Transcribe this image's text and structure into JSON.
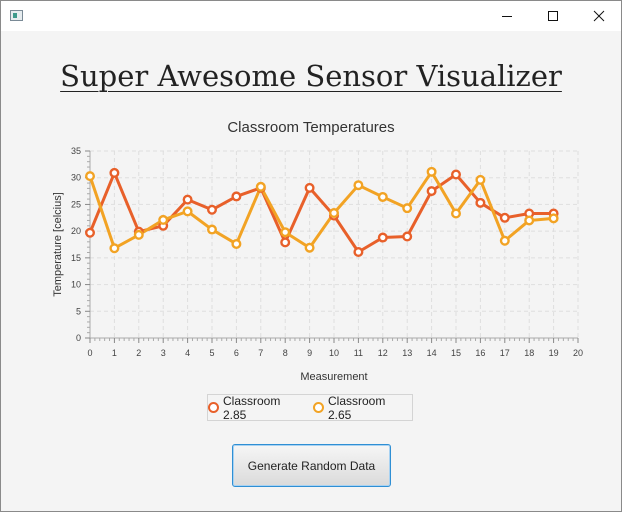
{
  "window": {
    "controls": {
      "minimize_icon": "minimize-icon",
      "maximize_icon": "maximize-icon",
      "close_icon": "close-icon"
    }
  },
  "header": {
    "title": "Super Awesome Sensor Visualizer"
  },
  "chart_data": {
    "type": "line",
    "title": "Classroom Temperatures",
    "xlabel": "Measurement",
    "ylabel": "Temperature [celcius]",
    "xlim": [
      0,
      20
    ],
    "ylim": [
      0,
      35
    ],
    "x_ticks": [
      0,
      1,
      2,
      3,
      4,
      5,
      6,
      7,
      8,
      9,
      10,
      11,
      12,
      13,
      14,
      15,
      16,
      17,
      18,
      19,
      20
    ],
    "y_ticks": [
      0,
      5,
      10,
      15,
      20,
      25,
      30,
      35
    ],
    "grid": true,
    "legend_position": "bottom",
    "x": [
      0,
      1,
      2,
      3,
      4,
      5,
      6,
      7,
      8,
      9,
      10,
      11,
      12,
      13,
      14,
      15,
      16,
      17,
      18,
      19
    ],
    "series": [
      {
        "name": "Classroom 2.85",
        "color": "#e8602a",
        "values": [
          19.7,
          30.9,
          19.9,
          21.0,
          25.9,
          24.0,
          26.5,
          28.1,
          17.9,
          28.1,
          22.9,
          16.1,
          18.8,
          19.0,
          27.5,
          30.6,
          25.3,
          22.5,
          23.3,
          23.3
        ]
      },
      {
        "name": "Classroom 2.65",
        "color": "#f2a324",
        "values": [
          30.3,
          16.8,
          19.3,
          22.1,
          23.7,
          20.3,
          17.6,
          28.3,
          19.8,
          16.9,
          23.4,
          28.6,
          26.4,
          24.3,
          31.1,
          23.3,
          29.6,
          18.2,
          22.0,
          22.4
        ]
      }
    ]
  },
  "legend": {
    "items": [
      "Classroom 2.85",
      "Classroom 2.65"
    ]
  },
  "actions": {
    "generate_label": "Generate Random Data"
  }
}
